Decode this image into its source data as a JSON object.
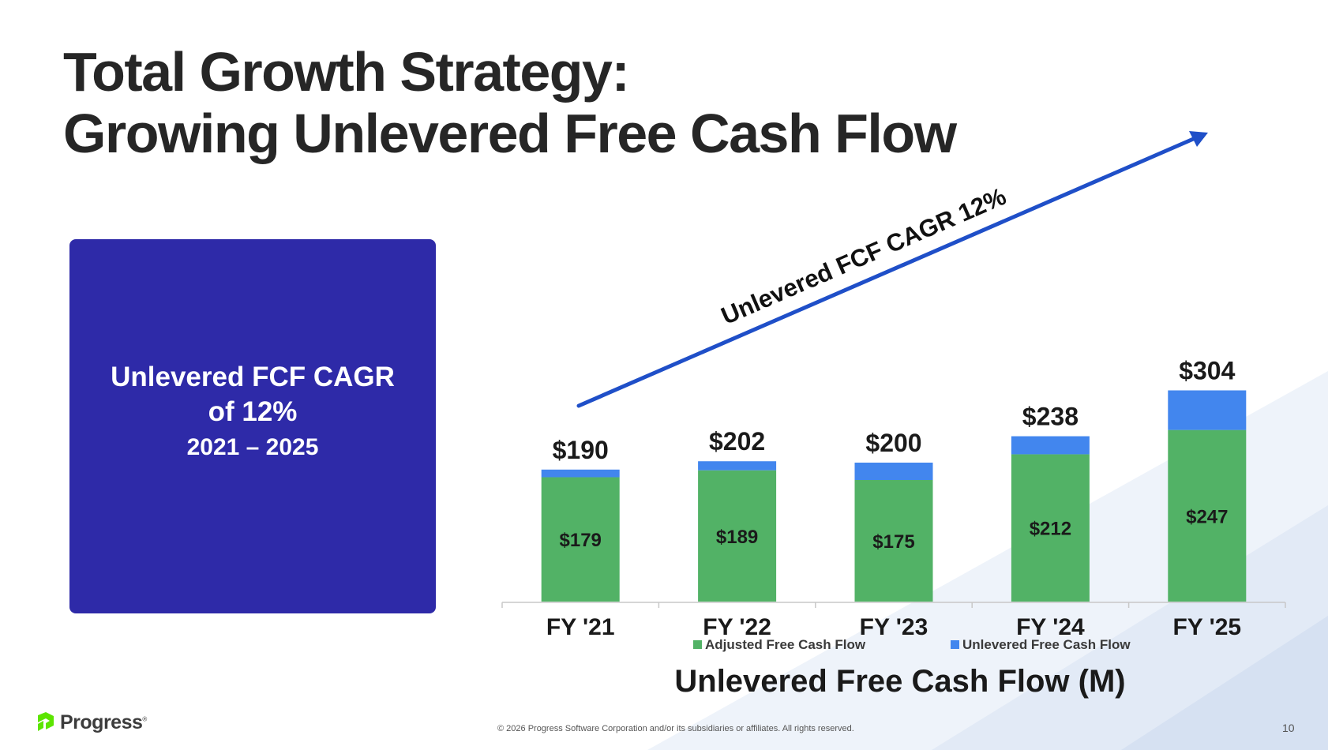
{
  "slide": {
    "title_line1": "Total Growth Strategy:",
    "title_line2": "Growing Unlevered Free Cash Flow"
  },
  "callout": {
    "line1": "Unlevered FCF CAGR",
    "line2": "of 12%",
    "line3": "2021 – 2025",
    "background": "#2e2aa8"
  },
  "chart_data": {
    "type": "bar",
    "stacked": true,
    "categories": [
      "FY '21",
      "FY '22",
      "FY '23",
      "FY '24",
      "FY '25"
    ],
    "series": [
      {
        "name": "Adjusted Free Cash Flow",
        "values": [
          179,
          189,
          175,
          212,
          247
        ],
        "labels": [
          "$179",
          "$189",
          "$175",
          "$212",
          "$247"
        ],
        "color": "#52b266"
      },
      {
        "name": "Unlevered Free Cash Flow",
        "values": [
          11,
          13,
          25,
          26,
          57
        ],
        "color": "#4286ee"
      }
    ],
    "totals": [
      190,
      202,
      200,
      238,
      304
    ],
    "total_labels": [
      "$190",
      "$202",
      "$200",
      "$238",
      "$304"
    ],
    "ylim": [
      0,
      320
    ],
    "xlabel": "Unlevered Free Cash Flow (M)",
    "annotation": "Unlevered FCF CAGR 12%",
    "annotation_color": "#1f4fc8",
    "legend_position": "bottom",
    "grid": false
  },
  "footer": {
    "logo_text": "Progress",
    "logo_mark": "®",
    "copyright": "© 2026 Progress Software Corporation and/or its subsidiaries or affiliates. All rights reserved.",
    "page_number": "10"
  }
}
